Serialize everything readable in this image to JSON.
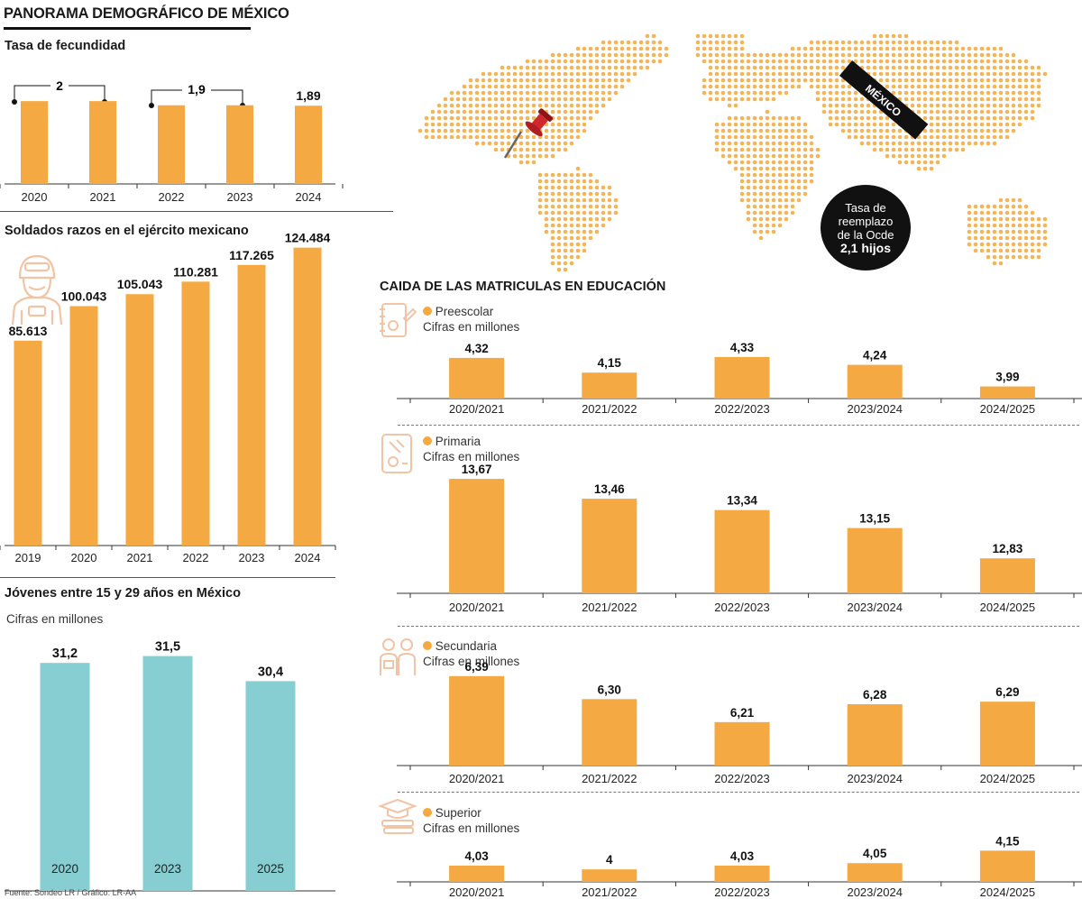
{
  "title": "PANORAMA DEMOGRÁFICO DE MÉXICO",
  "colors": {
    "bar": "#f5a942",
    "teal": "#87ced2",
    "dark": "#111111",
    "map": "#f5b455",
    "pin": "#d0282e",
    "icon": "#f2c4a6"
  },
  "source": "Fuente: Sondeo LR / Gráfico: LR-AA",
  "map": {
    "tag": "MÉXICO",
    "note_line1": "Tasa de",
    "note_line2": "reemplazo",
    "note_line3": "de la Ocde",
    "note_value": "2,1 hijos"
  },
  "fertility": {
    "title": "Tasa de fecundidad",
    "bracket_labels": [
      "2",
      "1,9"
    ],
    "last_label": "1,89"
  },
  "soldiers": {
    "title": "Soldados razos en el ejército mexicano"
  },
  "youth": {
    "title": "Jóvenes entre 15 y 29 años en México",
    "subtitle": "Cifras en millones"
  },
  "education": {
    "title": "CAIDA DE LAS MATRICULAS EN EDUCACIÓN",
    "subtitle": "Cifras en millones",
    "levels": [
      "Preescolar",
      "Primaria",
      "Secundaria",
      "Superior"
    ]
  },
  "chart_data": [
    {
      "id": "fecundidad",
      "type": "bar",
      "title": "Tasa de fecundidad",
      "categories": [
        "2020",
        "2021",
        "2022",
        "2023",
        "2024"
      ],
      "values": [
        2,
        2,
        1.9,
        1.9,
        1.89
      ],
      "data_labels": [
        "",
        "",
        "",
        "",
        "1,89"
      ],
      "ylim": [
        0,
        2.7
      ]
    },
    {
      "id": "soldados",
      "type": "bar",
      "title": "Soldados razos en el ejército mexicano",
      "categories": [
        "2019",
        "2020",
        "2021",
        "2022",
        "2023",
        "2024"
      ],
      "values": [
        85613,
        100043,
        105043,
        110281,
        117265,
        124484
      ],
      "data_labels": [
        "85.613",
        "100.043",
        "105.043",
        "110.281",
        "117.265",
        "124.484"
      ],
      "ylim": [
        0,
        130000
      ]
    },
    {
      "id": "jovenes",
      "type": "bar",
      "title": "Jóvenes entre 15 y 29 años en México",
      "ylabel": "Cifras en millones",
      "categories": [
        "2020",
        "2023",
        "2025"
      ],
      "values": [
        31.2,
        31.5,
        30.4
      ],
      "data_labels": [
        "31,2",
        "31,5",
        "30,4"
      ],
      "ylim": [
        21.2,
        31.8
      ]
    },
    {
      "id": "preescolar",
      "type": "bar",
      "title": "Preescolar",
      "ylabel": "Cifras en millones",
      "categories": [
        "2020/2021",
        "2021/2022",
        "2022/2023",
        "2023/2024",
        "2024/2025"
      ],
      "values": [
        4.32,
        4.15,
        4.33,
        4.24,
        3.99
      ],
      "data_labels": [
        "4,32",
        "4,15",
        "4,33",
        "4,24",
        "3,99"
      ],
      "ylim": [
        3.85,
        4.34
      ]
    },
    {
      "id": "primaria",
      "type": "bar",
      "title": "Primaria",
      "ylabel": "Cifras en millones",
      "categories": [
        "2020/2021",
        "2021/2022",
        "2022/2023",
        "2023/2024",
        "2024/2025"
      ],
      "values": [
        13.67,
        13.46,
        13.34,
        13.15,
        12.83
      ],
      "data_labels": [
        "13,67",
        "13,46",
        "13,34",
        "13,15",
        "12,83"
      ],
      "ylim": [
        12.46,
        13.68
      ]
    },
    {
      "id": "secundaria",
      "type": "bar",
      "title": "Secundaria",
      "ylabel": "Cifras en millones",
      "categories": [
        "2020/2021",
        "2021/2022",
        "2022/2023",
        "2023/2024",
        "2024/2025"
      ],
      "values": [
        6.39,
        6.3,
        6.21,
        6.28,
        6.29
      ],
      "data_labels": [
        "6,39",
        "6,30",
        "6,21",
        "6,28",
        "6,29"
      ],
      "ylim": [
        6.04,
        6.4
      ]
    },
    {
      "id": "superior",
      "type": "bar",
      "title": "Superior",
      "ylabel": "Cifras en millones",
      "categories": [
        "2020/2021",
        "2021/2022",
        "2022/2023",
        "2023/2024",
        "2024/2025"
      ],
      "values": [
        4.03,
        4,
        4.03,
        4.05,
        4.15
      ],
      "data_labels": [
        "4,03",
        "4",
        "4,03",
        "4,05",
        "4,15"
      ],
      "ylim": [
        3.9,
        4.16
      ]
    }
  ]
}
